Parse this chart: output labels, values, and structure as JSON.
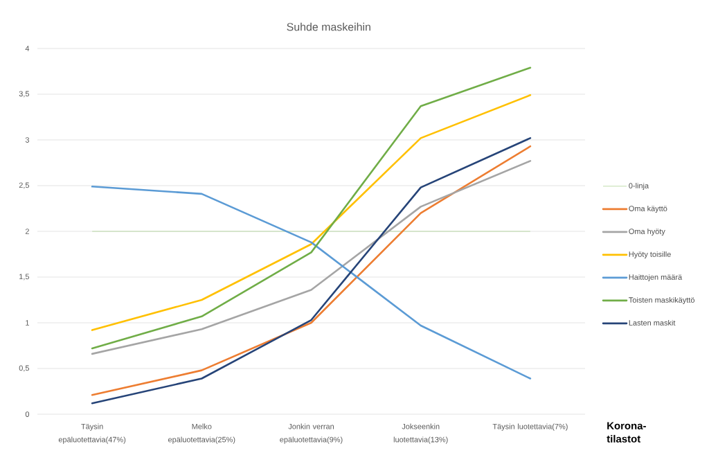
{
  "chart_data": {
    "type": "line",
    "title": "Suhde maskeihin",
    "xlabel": "Korona-tilastot",
    "categories": [
      "Täysin epäluotettavia(47%)",
      "Melko epäluotettavia(25%)",
      "Jonkin verran epäluotettavia(9%)",
      "Jokseenkin luotettavia(13%)",
      "Täysin luotettavia(7%)"
    ],
    "series": [
      {
        "name": "Oma käyttö",
        "color": "#ed7d31",
        "values": [
          0.21,
          0.48,
          1.0,
          2.2,
          2.93
        ]
      },
      {
        "name": "Oma hyöty",
        "color": "#a5a5a5",
        "values": [
          0.66,
          0.93,
          1.36,
          2.27,
          2.77
        ]
      },
      {
        "name": "Hyöty toisille",
        "color": "#ffc000",
        "values": [
          0.92,
          1.25,
          1.86,
          3.02,
          3.49
        ]
      },
      {
        "name": "Haittojen määrä",
        "color": "#5b9bd5",
        "values": [
          2.49,
          2.41,
          1.88,
          0.97,
          0.39
        ]
      },
      {
        "name": "Toisten maskikäyttö",
        "color": "#70ad47",
        "values": [
          0.72,
          1.07,
          1.77,
          3.37,
          3.79
        ]
      },
      {
        "name": "Lasten maskit",
        "color": "#264478",
        "values": [
          0.12,
          0.39,
          1.03,
          2.48,
          3.02
        ]
      }
    ],
    "ref_lines": [
      {
        "axis": "y",
        "value": 2,
        "label": "0-linja",
        "color": "#a9d18e"
      }
    ],
    "ylim": [
      0,
      4
    ],
    "yticks": [
      0,
      {
        "value": 0.5,
        "label": "0,5"
      },
      1,
      {
        "value": 1.5,
        "label": "1,5"
      },
      2,
      {
        "value": 2.5,
        "label": "2,5"
      },
      3,
      {
        "value": 3.5,
        "label": "3,5"
      },
      4
    ],
    "grid": "y",
    "legend": "right"
  }
}
